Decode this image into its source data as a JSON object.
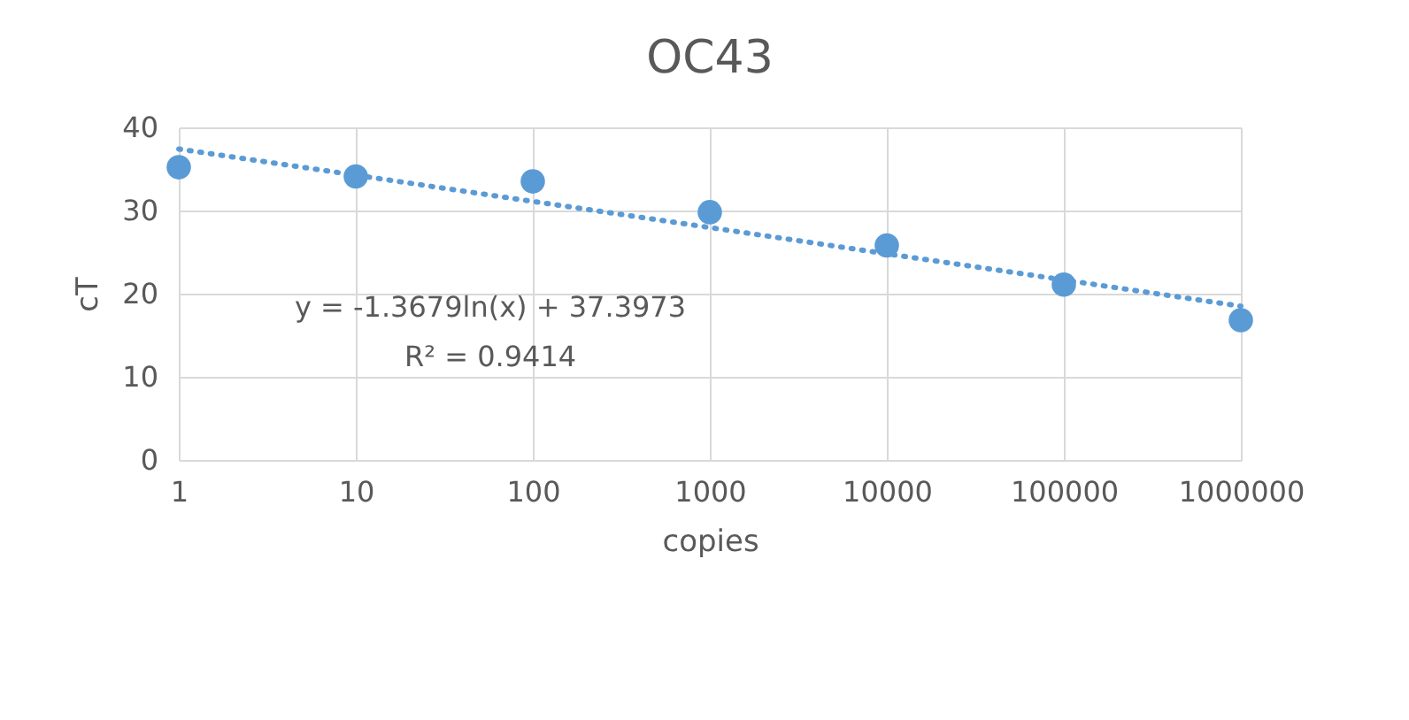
{
  "chart_data": {
    "type": "scatter",
    "title": "OC43",
    "xlabel": "copies",
    "ylabel": "cT",
    "x": [
      1,
      10,
      100,
      1000,
      10000,
      100000,
      1000000
    ],
    "xlim": [
      1,
      1000000
    ],
    "xticks": [
      1,
      10,
      100,
      1000,
      10000,
      100000,
      1000000
    ],
    "ylim": [
      0,
      40
    ],
    "yticks": [
      0,
      10,
      20,
      30,
      40
    ],
    "log": "x",
    "grid": true,
    "series": [
      {
        "marker": "circle",
        "color": "#5b9bd5",
        "values": [
          35.2,
          34.1,
          33.5,
          29.8,
          25.8,
          21.1,
          16.8
        ]
      },
      {
        "type": "line",
        "marker": "none",
        "line_style": "dotted",
        "color": "#5b9bd5",
        "x": [
          1,
          1000000
        ],
        "values": [
          37.4,
          18.5
        ]
      }
    ],
    "annotations": [
      "y = -1.3679ln(x) + 37.3973",
      "R² = 0.9414"
    ]
  }
}
